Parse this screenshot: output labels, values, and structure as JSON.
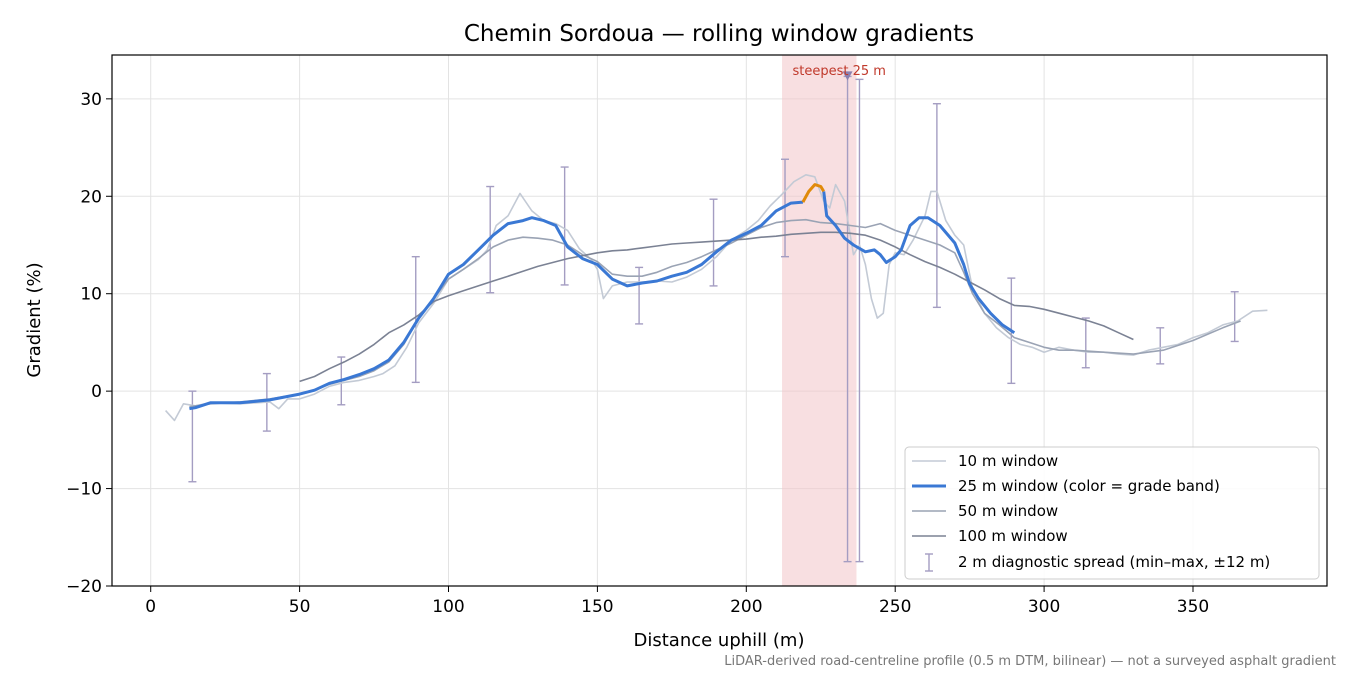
{
  "chart_data": {
    "type": "line",
    "title": "Chemin Sordoua — rolling window gradients",
    "xlabel": "Distance uphill (m)",
    "ylabel": "Gradient (%)",
    "xlim": [
      -13,
      395
    ],
    "ylim": [
      -20,
      34.5
    ],
    "x_ticks": [
      0,
      50,
      100,
      150,
      200,
      250,
      300,
      350
    ],
    "y_ticks": [
      -20,
      -10,
      0,
      10,
      20,
      30
    ],
    "grid": true,
    "legend_position": "lower-right",
    "footnote": "LiDAR-derived road-centreline profile (0.5 m DTM, bilinear) — not a surveyed asphalt gradient",
    "steepest": {
      "label": "steepest 25 m",
      "x_start": 212,
      "x_end": 237,
      "marker_x": 234,
      "marker_y": 32.3,
      "color": "#f2c4c9"
    },
    "series": [
      {
        "name": "10 m window",
        "color": "#c3cad5",
        "points": [
          [
            5,
            -2
          ],
          [
            8,
            -3
          ],
          [
            11,
            -1.3
          ],
          [
            15,
            -1.5
          ],
          [
            20,
            -1.2
          ],
          [
            30,
            -1.3
          ],
          [
            40,
            -1.1
          ],
          [
            43,
            -1.8
          ],
          [
            46,
            -0.8
          ],
          [
            50,
            -0.8
          ],
          [
            55,
            -0.3
          ],
          [
            60,
            0.5
          ],
          [
            65,
            0.9
          ],
          [
            70,
            1.1
          ],
          [
            75,
            1.5
          ],
          [
            78,
            1.8
          ],
          [
            82,
            2.6
          ],
          [
            86,
            4.5
          ],
          [
            90,
            7
          ],
          [
            95,
            9
          ],
          [
            100,
            11.5
          ],
          [
            105,
            12.5
          ],
          [
            110,
            13.5
          ],
          [
            113,
            14.5
          ],
          [
            116,
            17
          ],
          [
            120,
            18
          ],
          [
            124,
            20.3
          ],
          [
            128,
            18.5
          ],
          [
            132,
            17.5
          ],
          [
            136,
            17.2
          ],
          [
            140,
            16.5
          ],
          [
            144,
            14.6
          ],
          [
            148,
            13.5
          ],
          [
            150,
            12.5
          ],
          [
            152,
            9.5
          ],
          [
            155,
            10.8
          ],
          [
            160,
            11.2
          ],
          [
            165,
            11.2
          ],
          [
            170,
            11.3
          ],
          [
            175,
            11.2
          ],
          [
            180,
            11.7
          ],
          [
            185,
            12.5
          ],
          [
            190,
            13.8
          ],
          [
            195,
            15.5
          ],
          [
            200,
            16.5
          ],
          [
            204,
            17.5
          ],
          [
            208,
            19
          ],
          [
            212,
            20.2
          ],
          [
            216,
            21.5
          ],
          [
            220,
            22.2
          ],
          [
            223,
            22
          ],
          [
            226,
            19.5
          ],
          [
            228,
            18.8
          ],
          [
            230,
            21.2
          ],
          [
            233,
            19.5
          ],
          [
            236,
            14
          ],
          [
            238,
            15
          ],
          [
            240,
            13
          ],
          [
            242,
            9.5
          ],
          [
            244,
            7.5
          ],
          [
            246,
            8
          ],
          [
            248,
            13
          ],
          [
            250,
            14.2
          ],
          [
            253,
            14
          ],
          [
            256,
            15.5
          ],
          [
            260,
            18
          ],
          [
            262,
            20.5
          ],
          [
            264,
            20.5
          ],
          [
            267,
            17.5
          ],
          [
            270,
            16
          ],
          [
            273,
            15
          ],
          [
            276,
            10.5
          ],
          [
            280,
            8
          ],
          [
            284,
            6.5
          ],
          [
            288,
            5.5
          ],
          [
            292,
            4.8
          ],
          [
            296,
            4.5
          ],
          [
            300,
            4
          ],
          [
            305,
            4.5
          ],
          [
            310,
            4.2
          ],
          [
            315,
            4
          ],
          [
            320,
            4
          ],
          [
            325,
            3.8
          ],
          [
            330,
            3.7
          ],
          [
            335,
            4.2
          ],
          [
            340,
            4.5
          ],
          [
            345,
            4.8
          ],
          [
            350,
            5.5
          ],
          [
            355,
            6
          ],
          [
            360,
            6.8
          ],
          [
            365,
            7.2
          ],
          [
            370,
            8.2
          ],
          [
            375,
            8.3
          ]
        ]
      },
      {
        "name": "25 m window (color = grade band)",
        "color": "#3a78d4",
        "highlight_color": "#e08a0a",
        "highlight_range": [
          219,
          226
        ],
        "points": [
          [
            13,
            -1.8
          ],
          [
            15,
            -1.7
          ],
          [
            20,
            -1.2
          ],
          [
            30,
            -1.2
          ],
          [
            40,
            -0.9
          ],
          [
            50,
            -0.3
          ],
          [
            55,
            0.1
          ],
          [
            60,
            0.8
          ],
          [
            65,
            1.2
          ],
          [
            70,
            1.7
          ],
          [
            75,
            2.3
          ],
          [
            80,
            3.2
          ],
          [
            85,
            5
          ],
          [
            90,
            7.5
          ],
          [
            95,
            9.5
          ],
          [
            100,
            12
          ],
          [
            105,
            13
          ],
          [
            110,
            14.5
          ],
          [
            115,
            16
          ],
          [
            120,
            17.2
          ],
          [
            125,
            17.5
          ],
          [
            128,
            17.8
          ],
          [
            132,
            17.5
          ],
          [
            136,
            17
          ],
          [
            140,
            14.8
          ],
          [
            145,
            13.6
          ],
          [
            150,
            13
          ],
          [
            155,
            11.5
          ],
          [
            160,
            10.8
          ],
          [
            165,
            11.1
          ],
          [
            170,
            11.3
          ],
          [
            175,
            11.8
          ],
          [
            180,
            12.2
          ],
          [
            185,
            13
          ],
          [
            190,
            14.3
          ],
          [
            195,
            15.5
          ],
          [
            200,
            16.2
          ],
          [
            205,
            17
          ],
          [
            210,
            18.5
          ],
          [
            215,
            19.3
          ],
          [
            219,
            19.4
          ],
          [
            221,
            20.5
          ],
          [
            223,
            21.2
          ],
          [
            225,
            21
          ],
          [
            226,
            20.5
          ],
          [
            227,
            18
          ],
          [
            230,
            17
          ],
          [
            233,
            15.7
          ],
          [
            236,
            15
          ],
          [
            240,
            14.3
          ],
          [
            243,
            14.5
          ],
          [
            245,
            14
          ],
          [
            247,
            13.2
          ],
          [
            250,
            13.8
          ],
          [
            252,
            14.5
          ],
          [
            255,
            17
          ],
          [
            258,
            17.8
          ],
          [
            261,
            17.8
          ],
          [
            265,
            17
          ],
          [
            270,
            15.2
          ],
          [
            273,
            13
          ],
          [
            275,
            11
          ],
          [
            278,
            9.5
          ],
          [
            282,
            8
          ],
          [
            286,
            6.8
          ],
          [
            290,
            6
          ]
        ]
      },
      {
        "name": "50 m window",
        "color": "#9aa3b4",
        "points": [
          [
            13,
            -1.6
          ],
          [
            20,
            -1.3
          ],
          [
            30,
            -1.1
          ],
          [
            40,
            -0.8
          ],
          [
            50,
            -0.3
          ],
          [
            55,
            0.1
          ],
          [
            60,
            0.7
          ],
          [
            65,
            1.1
          ],
          [
            70,
            1.5
          ],
          [
            75,
            2.1
          ],
          [
            80,
            3
          ],
          [
            85,
            4.8
          ],
          [
            90,
            7.5
          ],
          [
            95,
            9.5
          ],
          [
            100,
            11.5
          ],
          [
            105,
            12.5
          ],
          [
            110,
            13.6
          ],
          [
            115,
            14.8
          ],
          [
            120,
            15.5
          ],
          [
            125,
            15.8
          ],
          [
            130,
            15.7
          ],
          [
            135,
            15.5
          ],
          [
            140,
            15
          ],
          [
            145,
            14
          ],
          [
            150,
            13.3
          ],
          [
            155,
            12
          ],
          [
            160,
            11.8
          ],
          [
            165,
            11.8
          ],
          [
            170,
            12.2
          ],
          [
            175,
            12.8
          ],
          [
            180,
            13.2
          ],
          [
            185,
            13.8
          ],
          [
            190,
            14.5
          ],
          [
            195,
            15.2
          ],
          [
            200,
            16
          ],
          [
            205,
            16.8
          ],
          [
            210,
            17.3
          ],
          [
            215,
            17.5
          ],
          [
            220,
            17.6
          ],
          [
            225,
            17.3
          ],
          [
            230,
            17.2
          ],
          [
            235,
            17
          ],
          [
            240,
            16.8
          ],
          [
            245,
            17.2
          ],
          [
            250,
            16.5
          ],
          [
            255,
            16
          ],
          [
            260,
            15.5
          ],
          [
            265,
            15
          ],
          [
            270,
            14.2
          ],
          [
            273,
            12.2
          ],
          [
            276,
            10
          ],
          [
            280,
            8
          ],
          [
            285,
            6.8
          ],
          [
            290,
            5.5
          ],
          [
            295,
            5
          ],
          [
            300,
            4.5
          ],
          [
            305,
            4.2
          ],
          [
            310,
            4.2
          ],
          [
            320,
            4
          ],
          [
            330,
            3.8
          ],
          [
            340,
            4.2
          ],
          [
            350,
            5.2
          ],
          [
            360,
            6.5
          ],
          [
            366,
            7.2
          ]
        ]
      },
      {
        "name": "100 m window",
        "color": "#7b8294",
        "points": [
          [
            50,
            1
          ],
          [
            55,
            1.5
          ],
          [
            60,
            2.3
          ],
          [
            65,
            3
          ],
          [
            70,
            3.8
          ],
          [
            75,
            4.8
          ],
          [
            80,
            6
          ],
          [
            85,
            6.8
          ],
          [
            90,
            7.8
          ],
          [
            95,
            9.2
          ],
          [
            100,
            9.8
          ],
          [
            105,
            10.3
          ],
          [
            110,
            10.8
          ],
          [
            115,
            11.3
          ],
          [
            120,
            11.8
          ],
          [
            125,
            12.3
          ],
          [
            130,
            12.8
          ],
          [
            135,
            13.2
          ],
          [
            140,
            13.6
          ],
          [
            145,
            13.9
          ],
          [
            150,
            14.2
          ],
          [
            155,
            14.4
          ],
          [
            160,
            14.5
          ],
          [
            165,
            14.7
          ],
          [
            170,
            14.9
          ],
          [
            175,
            15.1
          ],
          [
            180,
            15.2
          ],
          [
            185,
            15.3
          ],
          [
            190,
            15.4
          ],
          [
            195,
            15.5
          ],
          [
            200,
            15.6
          ],
          [
            205,
            15.8
          ],
          [
            210,
            15.9
          ],
          [
            215,
            16.1
          ],
          [
            220,
            16.2
          ],
          [
            225,
            16.3
          ],
          [
            230,
            16.3
          ],
          [
            235,
            16.2
          ],
          [
            240,
            16
          ],
          [
            245,
            15.5
          ],
          [
            250,
            14.8
          ],
          [
            255,
            14
          ],
          [
            260,
            13.3
          ],
          [
            265,
            12.7
          ],
          [
            270,
            12
          ],
          [
            275,
            11.2
          ],
          [
            280,
            10.4
          ],
          [
            285,
            9.5
          ],
          [
            290,
            8.8
          ],
          [
            295,
            8.7
          ],
          [
            300,
            8.4
          ],
          [
            305,
            8
          ],
          [
            310,
            7.6
          ],
          [
            315,
            7.2
          ],
          [
            320,
            6.7
          ],
          [
            325,
            6
          ],
          [
            330,
            5.3
          ]
        ]
      }
    ],
    "error_bars": {
      "name": "2 m diagnostic spread (min–max, ±12 m)",
      "color": "#a49dc2",
      "bars": [
        {
          "x": 14,
          "low": -9.3,
          "high": 0
        },
        {
          "x": 39,
          "low": -4.1,
          "high": 1.8
        },
        {
          "x": 64,
          "low": -1.4,
          "high": 3.5
        },
        {
          "x": 89,
          "low": 0.9,
          "high": 13.8
        },
        {
          "x": 114,
          "low": 10.1,
          "high": 21
        },
        {
          "x": 139,
          "low": 10.9,
          "high": 23
        },
        {
          "x": 164,
          "low": 6.9,
          "high": 12.7
        },
        {
          "x": 189,
          "low": 10.8,
          "high": 19.7
        },
        {
          "x": 213,
          "low": 13.8,
          "high": 23.8
        },
        {
          "x": 234,
          "low": -17.5,
          "high": 32.3
        },
        {
          "x": 238,
          "low": -17.5,
          "high": 32
        },
        {
          "x": 264,
          "low": 8.6,
          "high": 29.5
        },
        {
          "x": 289,
          "low": 0.8,
          "high": 11.6
        },
        {
          "x": 314,
          "low": 2.4,
          "high": 7.5
        },
        {
          "x": 339,
          "low": 2.8,
          "high": 6.5
        },
        {
          "x": 364,
          "low": 5.1,
          "high": 10.2
        }
      ]
    }
  }
}
